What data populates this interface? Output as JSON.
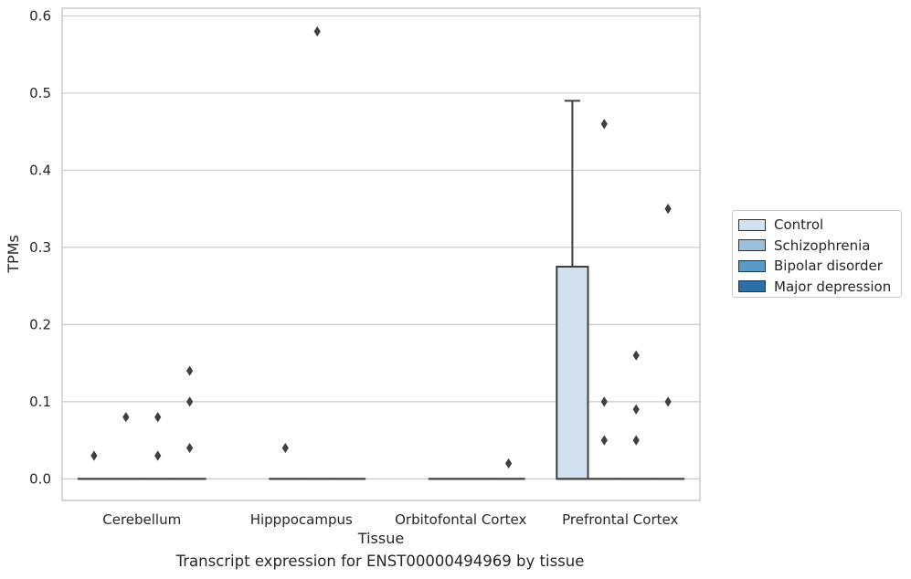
{
  "chart_data": {
    "type": "box",
    "title": "",
    "xlabel": "Tissue",
    "ylabel": "TPMs",
    "caption": "Transcript expression for ENST00000494969 by tissue",
    "ylim": [
      -0.028,
      0.61
    ],
    "yticks": [
      0.0,
      0.1,
      0.2,
      0.3,
      0.4,
      0.5,
      0.6
    ],
    "ytick_labels": [
      "0.0",
      "0.1",
      "0.2",
      "0.3",
      "0.4",
      "0.5",
      "0.6"
    ],
    "grid": "horizontal",
    "legend_position": "right",
    "categories": [
      "Cerebellum",
      "Hipppocampus",
      "Orbitofontal Cortex",
      "Prefrontal Cortex"
    ],
    "series": [
      {
        "name": "Control",
        "color": "#d1e1ef",
        "boxes": [
          {
            "q1": 0,
            "median": 0,
            "q3": 0,
            "whisker_low": 0,
            "whisker_high": 0,
            "outliers": [
              0.03
            ]
          },
          null,
          null,
          {
            "q1": 0,
            "median": 0,
            "q3": 0.275,
            "whisker_low": 0,
            "whisker_high": 0.49,
            "outliers": []
          }
        ]
      },
      {
        "name": "Schizophrenia",
        "color": "#9ac1dc",
        "boxes": [
          {
            "q1": 0,
            "median": 0,
            "q3": 0,
            "whisker_low": 0,
            "whisker_high": 0,
            "outliers": [
              0.08
            ]
          },
          {
            "q1": 0,
            "median": 0,
            "q3": 0,
            "whisker_low": 0,
            "whisker_high": 0,
            "outliers": [
              0.04
            ]
          },
          {
            "q1": 0,
            "median": 0,
            "q3": 0,
            "whisker_low": 0,
            "whisker_high": 0,
            "outliers": []
          },
          {
            "q1": 0,
            "median": 0,
            "q3": 0,
            "whisker_low": 0,
            "whisker_high": 0,
            "outliers": [
              0.46,
              0.1,
              0.05
            ]
          }
        ]
      },
      {
        "name": "Bipolar disorder",
        "color": "#5a9ac6",
        "boxes": [
          {
            "q1": 0,
            "median": 0,
            "q3": 0,
            "whisker_low": 0,
            "whisker_high": 0,
            "outliers": [
              0.08,
              0.03
            ]
          },
          {
            "q1": 0,
            "median": 0,
            "q3": 0,
            "whisker_low": 0,
            "whisker_high": 0,
            "outliers": [
              0.58
            ]
          },
          {
            "q1": 0,
            "median": 0,
            "q3": 0,
            "whisker_low": 0,
            "whisker_high": 0,
            "outliers": []
          },
          {
            "q1": 0,
            "median": 0,
            "q3": 0,
            "whisker_low": 0,
            "whisker_high": 0,
            "outliers": [
              0.16,
              0.09,
              0.05
            ]
          }
        ]
      },
      {
        "name": "Major depression",
        "color": "#2b6ea8",
        "boxes": [
          {
            "q1": 0,
            "median": 0,
            "q3": 0,
            "whisker_low": 0,
            "whisker_high": 0,
            "outliers": [
              0.14,
              0.1,
              0.04
            ]
          },
          {
            "q1": 0,
            "median": 0,
            "q3": 0,
            "whisker_low": 0,
            "whisker_high": 0,
            "outliers": []
          },
          {
            "q1": 0,
            "median": 0,
            "q3": 0,
            "whisker_low": 0,
            "whisker_high": 0,
            "outliers": [
              0.02
            ]
          },
          {
            "q1": 0,
            "median": 0,
            "q3": 0,
            "whisker_low": 0,
            "whisker_high": 0,
            "outliers": [
              0.35,
              0.1
            ]
          }
        ]
      }
    ]
  },
  "colors": {
    "grid": "#cccccc",
    "axes_border": "#cccccc",
    "box_edge": "#3f3f3f",
    "outlier": "#3f3f3f"
  }
}
